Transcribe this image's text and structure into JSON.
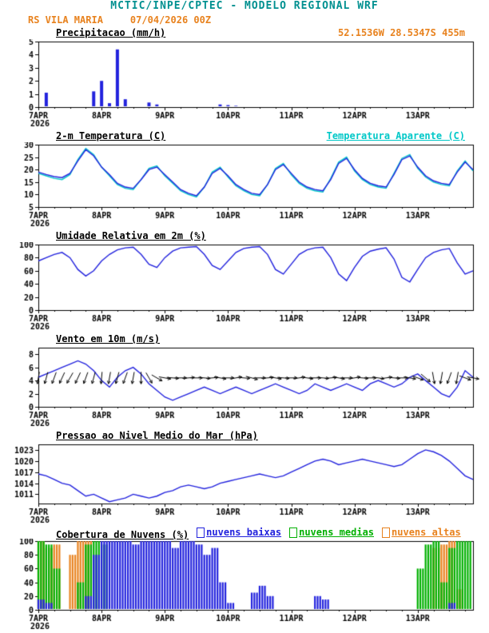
{
  "header": {
    "title": "MCTIC/INPE/CPTEC - MODELO REGIONAL WRF",
    "station": "RS VILA MARIA",
    "run": "07/04/2026 00Z",
    "location": "52.1536W 28.5347S 455m"
  },
  "colors": {
    "header_teal": "#009090",
    "orange": "#e8821e",
    "cyan": "#00c8c8",
    "line_blue": "#2222dd",
    "cloud_green": "#00b000",
    "axis_black": "#000000"
  },
  "x_axis": {
    "total_hours": 165,
    "step_hours": 3,
    "tick_hours": [
      0,
      24,
      48,
      72,
      96,
      120,
      144
    ],
    "labels": [
      "7APR",
      "8APR",
      "9APR",
      "10APR",
      "11APR",
      "12APR",
      "13APR"
    ],
    "year": "2026",
    "minor_tick_hours": 6
  },
  "chart_data": [
    {
      "type": "bar",
      "title": "Precipitacao (mm/h)",
      "ylabel": "mm/h",
      "ylim": [
        0,
        5
      ],
      "yticks": [
        0,
        1,
        2,
        3,
        4,
        5
      ],
      "color": "#2222dd",
      "values": [
        0,
        1.1,
        0,
        0,
        0,
        0,
        0,
        1.2,
        2,
        0.3,
        4.4,
        0.6,
        0,
        0,
        0.35,
        0.2,
        0,
        0,
        0,
        0,
        0,
        0,
        0,
        0.2,
        0.15,
        0.1,
        0,
        0,
        0,
        0,
        0,
        0,
        0,
        0,
        0,
        0,
        0,
        0,
        0,
        0,
        0,
        0,
        0,
        0,
        0,
        0,
        0,
        0,
        0,
        0,
        0,
        0,
        0,
        0,
        0,
        0
      ]
    },
    {
      "type": "line",
      "title": "2-m Temperatura (C)",
      "right_label": "Temperatura Aparente (C)",
      "ylabel": "C",
      "ylim": [
        5,
        30
      ],
      "yticks": [
        5,
        10,
        15,
        20,
        25,
        30
      ],
      "series": [
        {
          "name": "Temperatura Aparente (C)",
          "color": "#00c8c8",
          "values": [
            18.5,
            17.5,
            16.5,
            16,
            18,
            24,
            28.5,
            26,
            21,
            17.5,
            14,
            12.5,
            12,
            16,
            20.5,
            21.5,
            17.5,
            14.5,
            11.5,
            10,
            9,
            13,
            19,
            21,
            17,
            13.5,
            11.5,
            10,
            9.5,
            14,
            20.5,
            22.5,
            18,
            14.5,
            12.5,
            11.5,
            11,
            16.5,
            23,
            25,
            19.5,
            16,
            14,
            13,
            12.5,
            18.5,
            24.5,
            26,
            20.5,
            17,
            15,
            14,
            13.5,
            19.5,
            23.5,
            19.5
          ]
        },
        {
          "name": "2-m Temperatura (C)",
          "color": "#2222dd",
          "values": [
            19,
            18,
            17.2,
            16.8,
            18.5,
            23.5,
            28,
            25.5,
            21,
            18,
            14.5,
            13,
            12.5,
            16,
            20,
            21,
            18,
            15,
            12,
            10.5,
            9.5,
            13,
            18.5,
            20.5,
            17.5,
            14,
            12,
            10.5,
            10,
            14,
            20,
            22,
            18.5,
            15,
            13,
            12,
            11.5,
            16,
            22.5,
            24.5,
            20,
            16.5,
            14.5,
            13.5,
            13,
            18,
            24,
            25.5,
            21,
            17.5,
            15.5,
            14.5,
            14,
            19,
            23,
            20
          ]
        }
      ]
    },
    {
      "type": "line",
      "title": "Umidade Relativa em 2m (%)",
      "ylabel": "%",
      "ylim": [
        0,
        100
      ],
      "yticks": [
        0,
        20,
        40,
        60,
        80,
        100
      ],
      "series": [
        {
          "name": "Umidade Relativa",
          "color": "#2222dd",
          "values": [
            75,
            80,
            85,
            88,
            80,
            62,
            52,
            60,
            75,
            85,
            92,
            95,
            96,
            85,
            70,
            65,
            80,
            90,
            95,
            96,
            97,
            85,
            68,
            62,
            75,
            88,
            94,
            96,
            97,
            85,
            62,
            55,
            70,
            85,
            92,
            95,
            96,
            80,
            55,
            45,
            65,
            82,
            90,
            93,
            95,
            78,
            50,
            43,
            62,
            80,
            88,
            92,
            94,
            72,
            55,
            60
          ]
        }
      ]
    },
    {
      "type": "line",
      "title": "Vento em 10m (m/s)",
      "ylabel": "m/s",
      "ylim": [
        0,
        9
      ],
      "yticks": [
        0,
        2,
        4,
        6,
        8
      ],
      "series": [
        {
          "name": "Velocidade do Vento",
          "color": "#2222dd",
          "values": [
            4.5,
            5,
            5.5,
            6,
            6.5,
            7,
            6.5,
            5.5,
            4,
            3,
            4.5,
            5.5,
            6,
            5,
            3.5,
            2.5,
            1.5,
            1,
            1.5,
            2,
            2.5,
            3,
            2.5,
            2,
            2.5,
            3,
            2.5,
            2,
            2.5,
            3,
            3.5,
            3,
            2.5,
            2,
            2.5,
            3.5,
            3,
            2.5,
            3,
            3.5,
            3,
            2.5,
            3.5,
            4,
            3.5,
            3,
            3.5,
            4.5,
            5,
            4,
            3,
            2,
            1.5,
            3,
            5.5,
            4.5
          ]
        }
      ],
      "barbs": {
        "y_center": 4.4,
        "dirs_deg_screen": [
          100,
          105,
          110,
          115,
          120,
          115,
          110,
          105,
          95,
          100,
          105,
          110,
          100,
          90,
          60,
          30,
          10,
          5,
          0,
          -5,
          0,
          5,
          -5,
          10,
          0,
          -10,
          5,
          15,
          0,
          -5,
          10,
          5,
          0,
          -8,
          8,
          0,
          5,
          -5,
          10,
          0,
          -10,
          5,
          0,
          8,
          -8,
          5,
          0,
          10,
          20,
          40,
          80,
          100,
          110,
          100,
          20,
          10
        ]
      }
    },
    {
      "type": "line",
      "title": "Pressao ao Nivel Medio do Mar (hPa)",
      "ylabel": "hPa",
      "ylim": [
        1008.5,
        1024.5
      ],
      "yticks": [
        1011,
        1014,
        1017,
        1020,
        1023
      ],
      "series": [
        {
          "name": "Pressao ao Nivel Medio do Mar",
          "color": "#2222dd",
          "values": [
            1016.5,
            1016,
            1015,
            1014,
            1013.5,
            1012,
            1010.5,
            1011,
            1010,
            1009,
            1009.5,
            1010,
            1011,
            1010.5,
            1010,
            1010.5,
            1011.5,
            1012,
            1013,
            1013.5,
            1013,
            1012.5,
            1013,
            1014,
            1014.5,
            1015,
            1015.5,
            1016,
            1016.5,
            1016,
            1015.5,
            1016,
            1017,
            1018,
            1019,
            1020,
            1020.5,
            1020,
            1019,
            1019.5,
            1020,
            1020.5,
            1020,
            1019.5,
            1019,
            1018.5,
            1019,
            1020.5,
            1022,
            1023,
            1022.5,
            1021.5,
            1020,
            1018,
            1016,
            1015
          ]
        }
      ]
    },
    {
      "type": "bar",
      "title": "Cobertura de Nuvens (%)",
      "ylabel": "%",
      "ylim": [
        0,
        100
      ],
      "yticks": [
        0,
        20,
        40,
        60,
        80,
        100
      ],
      "legend": [
        {
          "label": "nuvens baixas",
          "color": "#2222dd"
        },
        {
          "label": "nuvens medias",
          "color": "#00b000"
        },
        {
          "label": "nuvens altas",
          "color": "#e8821e"
        }
      ],
      "series": [
        {
          "name": "nuvens baixas",
          "color": "#2222dd",
          "values": [
            15,
            10,
            0,
            0,
            0,
            0,
            20,
            80,
            100,
            100,
            100,
            100,
            95,
            100,
            100,
            100,
            100,
            90,
            100,
            100,
            95,
            80,
            90,
            40,
            10,
            0,
            0,
            25,
            35,
            20,
            0,
            0,
            0,
            0,
            0,
            20,
            15,
            0,
            0,
            0,
            0,
            0,
            0,
            0,
            0,
            0,
            0,
            0,
            0,
            0,
            0,
            0,
            10,
            0,
            0,
            0
          ]
        },
        {
          "name": "nuvens medias",
          "color": "#00b000",
          "values": [
            100,
            95,
            60,
            0,
            0,
            40,
            95,
            100,
            95,
            0,
            0,
            0,
            0,
            0,
            0,
            0,
            0,
            0,
            0,
            0,
            0,
            0,
            0,
            0,
            0,
            0,
            0,
            0,
            0,
            0,
            0,
            0,
            0,
            0,
            0,
            0,
            0,
            0,
            0,
            0,
            0,
            0,
            0,
            0,
            0,
            0,
            0,
            0,
            60,
            95,
            100,
            40,
            90,
            100,
            100,
            100
          ]
        },
        {
          "name": "nuvens altas",
          "color": "#e8821e",
          "values": [
            100,
            90,
            95,
            0,
            80,
            100,
            100,
            0,
            0,
            0,
            0,
            0,
            0,
            0,
            0,
            0,
            0,
            0,
            0,
            0,
            0,
            0,
            0,
            0,
            0,
            0,
            0,
            0,
            0,
            0,
            0,
            0,
            0,
            0,
            0,
            0,
            0,
            0,
            0,
            0,
            0,
            0,
            0,
            0,
            0,
            0,
            0,
            0,
            0,
            0,
            90,
            95,
            100,
            30,
            0,
            0
          ]
        }
      ]
    }
  ]
}
